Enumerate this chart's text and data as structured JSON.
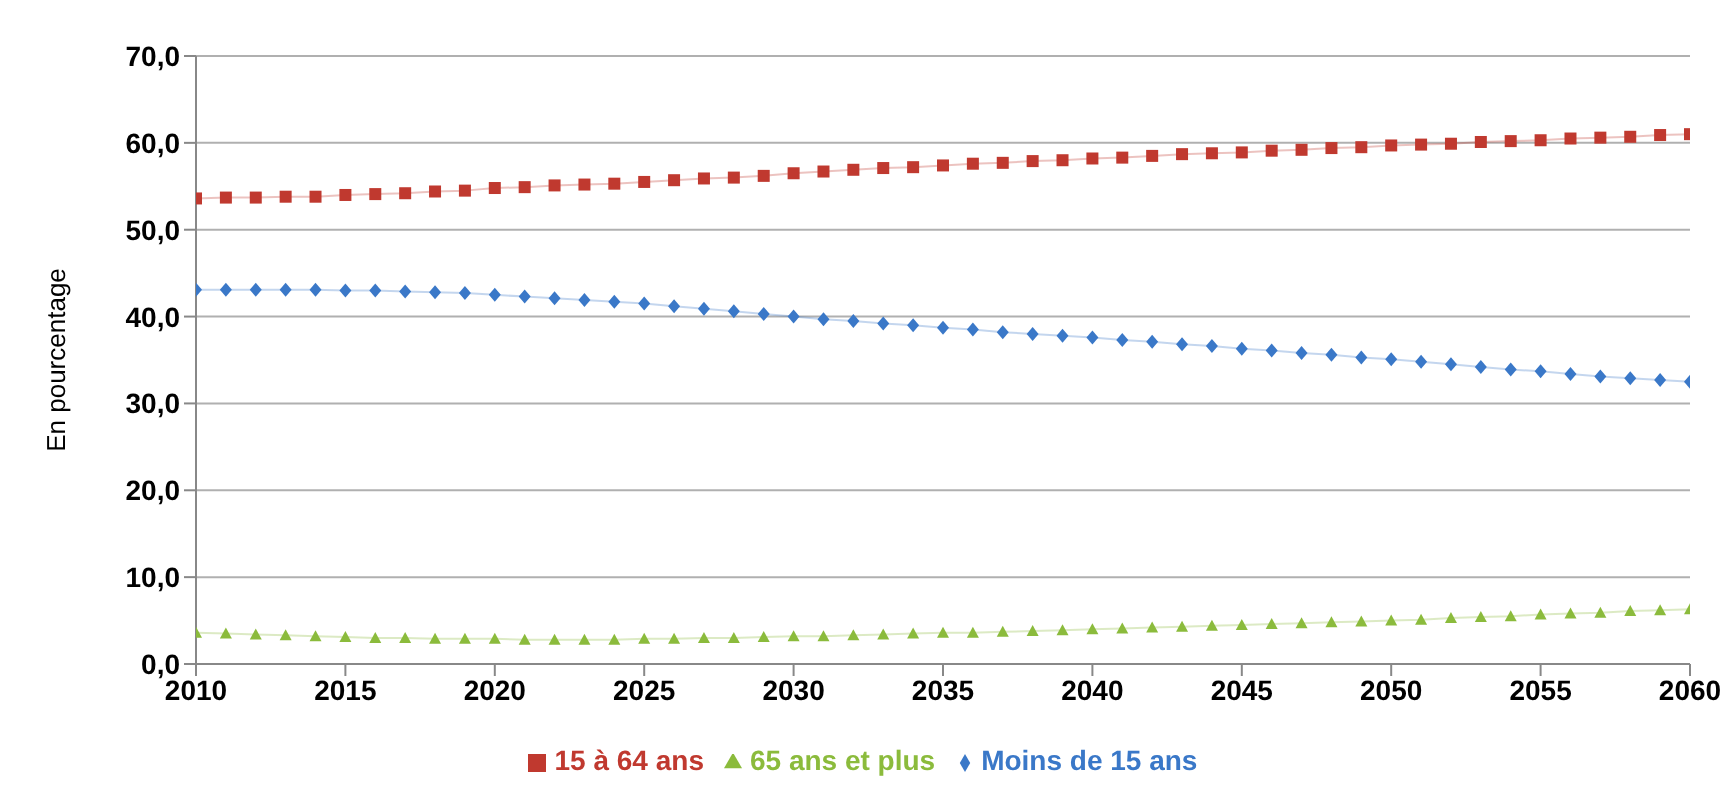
{
  "chart_data": {
    "type": "line",
    "ylabel": "En pourcentage",
    "x": [
      2010,
      2011,
      2012,
      2013,
      2014,
      2015,
      2016,
      2017,
      2018,
      2019,
      2020,
      2021,
      2022,
      2023,
      2024,
      2025,
      2026,
      2027,
      2028,
      2029,
      2030,
      2031,
      2032,
      2033,
      2034,
      2035,
      2036,
      2037,
      2038,
      2039,
      2040,
      2041,
      2042,
      2043,
      2044,
      2045,
      2046,
      2047,
      2048,
      2049,
      2050,
      2051,
      2052,
      2053,
      2054,
      2055,
      2056,
      2057,
      2058,
      2059,
      2060
    ],
    "xlim": [
      2010,
      2060
    ],
    "xticks": [
      2010,
      2015,
      2020,
      2025,
      2030,
      2035,
      2040,
      2045,
      2050,
      2055,
      2060
    ],
    "ylim": [
      0,
      70
    ],
    "yticks": [
      {
        "value": 0,
        "label": "0,0"
      },
      {
        "value": 10,
        "label": "10,0"
      },
      {
        "value": 20,
        "label": "20,0"
      },
      {
        "value": 30,
        "label": "30,0"
      },
      {
        "value": 40,
        "label": "40,0"
      },
      {
        "value": 50,
        "label": "50,0"
      },
      {
        "value": 60,
        "label": "60,0"
      },
      {
        "value": 70,
        "label": "70,0"
      }
    ],
    "grid": "y",
    "legend": "bottom",
    "series": [
      {
        "name": "Moins de 15 ans",
        "color": "#3a78c8",
        "marker": "diamond",
        "values": [
          43.1,
          43.1,
          43.1,
          43.1,
          43.1,
          43.0,
          43.0,
          42.9,
          42.8,
          42.7,
          42.5,
          42.3,
          42.1,
          41.9,
          41.7,
          41.5,
          41.2,
          40.9,
          40.6,
          40.3,
          40.0,
          39.7,
          39.5,
          39.2,
          39.0,
          38.7,
          38.5,
          38.2,
          38.0,
          37.8,
          37.6,
          37.3,
          37.1,
          36.8,
          36.6,
          36.3,
          36.1,
          35.8,
          35.6,
          35.3,
          35.1,
          34.8,
          34.5,
          34.2,
          33.9,
          33.7,
          33.4,
          33.1,
          32.9,
          32.7,
          32.5
        ]
      },
      {
        "name": "15 à 64 ans",
        "color": "#c0392f",
        "marker": "square",
        "values": [
          53.6,
          53.7,
          53.7,
          53.8,
          53.8,
          54.0,
          54.1,
          54.2,
          54.4,
          54.5,
          54.8,
          54.9,
          55.1,
          55.2,
          55.3,
          55.5,
          55.7,
          55.9,
          56.0,
          56.2,
          56.5,
          56.7,
          56.9,
          57.1,
          57.2,
          57.4,
          57.6,
          57.7,
          57.9,
          58.0,
          58.2,
          58.3,
          58.5,
          58.7,
          58.8,
          58.9,
          59.1,
          59.2,
          59.4,
          59.5,
          59.7,
          59.8,
          59.9,
          60.1,
          60.2,
          60.3,
          60.5,
          60.6,
          60.7,
          60.9,
          61.0
        ]
      },
      {
        "name": "65 ans et plus",
        "color": "#8bbb3c",
        "marker": "triangle",
        "values": [
          3.6,
          3.5,
          3.4,
          3.3,
          3.2,
          3.1,
          3.0,
          3.0,
          2.9,
          2.9,
          2.9,
          2.8,
          2.8,
          2.8,
          2.8,
          2.9,
          2.9,
          3.0,
          3.0,
          3.1,
          3.2,
          3.2,
          3.3,
          3.4,
          3.5,
          3.6,
          3.6,
          3.7,
          3.8,
          3.9,
          4.0,
          4.1,
          4.2,
          4.3,
          4.4,
          4.5,
          4.6,
          4.7,
          4.8,
          4.9,
          5.0,
          5.1,
          5.3,
          5.4,
          5.5,
          5.7,
          5.8,
          5.9,
          6.1,
          6.2,
          6.3
        ]
      }
    ]
  }
}
